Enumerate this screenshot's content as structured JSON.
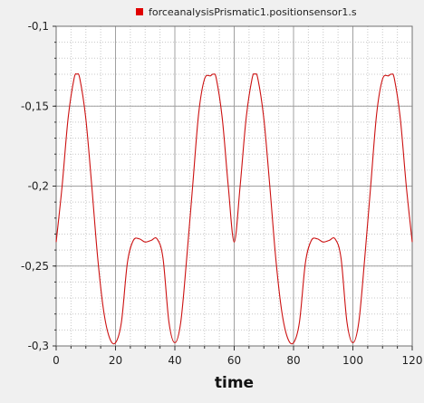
{
  "chart_data": {
    "type": "line",
    "title": "",
    "xlabel": "time",
    "ylabel": "",
    "xlim": [
      0,
      120
    ],
    "ylim": [
      -0.3,
      -0.1
    ],
    "xticks": [
      0,
      20,
      40,
      60,
      80,
      100,
      120
    ],
    "xtick_labels": [
      "0",
      "20",
      "40",
      "60",
      "80",
      "100",
      "120"
    ],
    "yticks": [
      -0.1,
      -0.15,
      -0.2,
      -0.25,
      -0.3
    ],
    "ytick_labels": [
      "-0,1",
      "-0,15",
      "-0,2",
      "-0,25",
      "-0,3"
    ],
    "grid": true,
    "legend_position": "top-center",
    "series": [
      {
        "name": "forceanalysisPrismatic1.positionsensor1.s",
        "color": "#cc1111",
        "x": [
          0,
          2,
          4,
          6,
          7,
          8,
          10,
          12,
          14,
          16,
          18,
          20,
          22,
          24,
          26,
          28,
          30,
          32,
          34,
          36,
          38,
          40,
          42,
          44,
          46,
          48,
          50,
          52,
          53,
          54,
          56,
          58,
          60,
          62,
          64,
          66,
          67,
          68,
          70,
          72,
          74,
          76,
          78,
          80,
          82,
          84,
          86,
          88,
          90,
          92,
          94,
          96,
          98,
          100,
          102,
          104,
          106,
          108,
          110,
          112,
          113,
          114,
          116,
          118,
          120
        ],
        "y": [
          -0.235,
          -0.2,
          -0.158,
          -0.133,
          -0.13,
          -0.133,
          -0.158,
          -0.2,
          -0.245,
          -0.278,
          -0.295,
          -0.298,
          -0.285,
          -0.248,
          -0.234,
          -0.233,
          -0.235,
          -0.234,
          -0.233,
          -0.245,
          -0.285,
          -0.298,
          -0.285,
          -0.245,
          -0.2,
          -0.155,
          -0.133,
          -0.131,
          -0.13,
          -0.133,
          -0.158,
          -0.2,
          -0.235,
          -0.2,
          -0.158,
          -0.133,
          -0.13,
          -0.133,
          -0.158,
          -0.2,
          -0.245,
          -0.278,
          -0.295,
          -0.298,
          -0.285,
          -0.248,
          -0.234,
          -0.233,
          -0.235,
          -0.234,
          -0.233,
          -0.245,
          -0.285,
          -0.298,
          -0.285,
          -0.245,
          -0.2,
          -0.155,
          -0.133,
          -0.131,
          -0.13,
          -0.133,
          -0.158,
          -0.2,
          -0.235
        ]
      }
    ]
  }
}
